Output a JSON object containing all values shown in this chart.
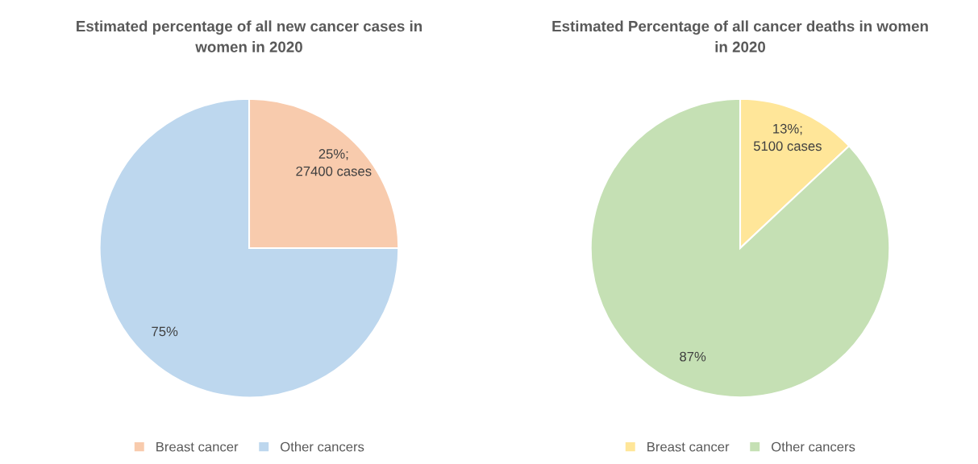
{
  "chart_data": [
    {
      "type": "pie",
      "title": "Estimated percentage of all new cancer cases in women in 2020",
      "categories": [
        "Breast cancer",
        "Other cancers"
      ],
      "values": [
        25,
        75
      ],
      "colors": [
        "#f8cbad",
        "#bdd7ee"
      ],
      "value_labels": [
        "25%;\n27400 cases",
        "75%"
      ],
      "legend": "bottom"
    },
    {
      "type": "pie",
      "title": "Estimated Percentage of all cancer deaths in women in 2020",
      "categories": [
        "Breast cancer",
        "Other cancers"
      ],
      "values": [
        13,
        87
      ],
      "colors": [
        "#ffe699",
        "#c5e0b4"
      ],
      "value_labels": [
        "13%;\n5100 cases",
        "87%"
      ],
      "legend": "bottom"
    }
  ]
}
